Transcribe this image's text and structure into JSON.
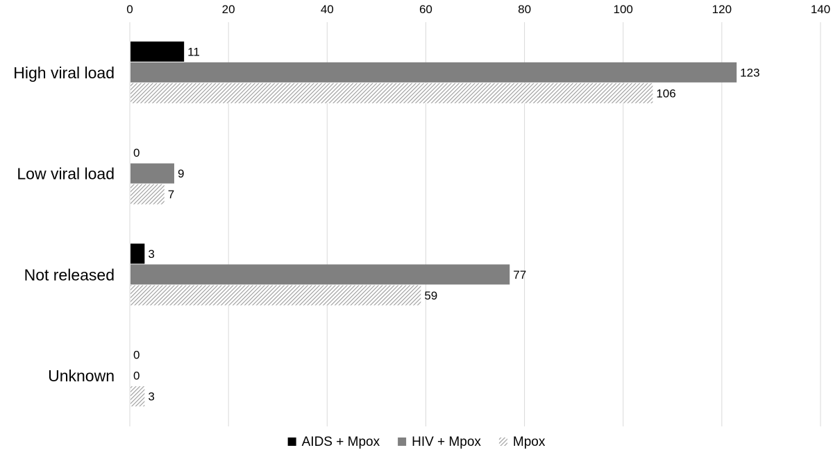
{
  "chart_data": {
    "type": "bar",
    "orientation": "horizontal",
    "categories": [
      "High viral load",
      "Low viral load",
      "Not released",
      "Unknown"
    ],
    "series": [
      {
        "name": "AIDS + Mpox",
        "values": [
          11,
          0,
          3,
          0
        ],
        "color": "#000000",
        "pattern": "solid"
      },
      {
        "name": "HIV + Mpox",
        "values": [
          123,
          9,
          77,
          0
        ],
        "color": "#808080",
        "pattern": "solid"
      },
      {
        "name": "Mpox",
        "values": [
          106,
          7,
          59,
          3
        ],
        "color": "#bfbfbf",
        "pattern": "diagonal-hatch"
      }
    ],
    "x_ticks": [
      0,
      20,
      40,
      60,
      80,
      100,
      120,
      140
    ],
    "xlim": [
      0,
      140
    ],
    "x_axis_position": "top",
    "grid": true,
    "legend_position": "bottom",
    "data_labels": true
  }
}
